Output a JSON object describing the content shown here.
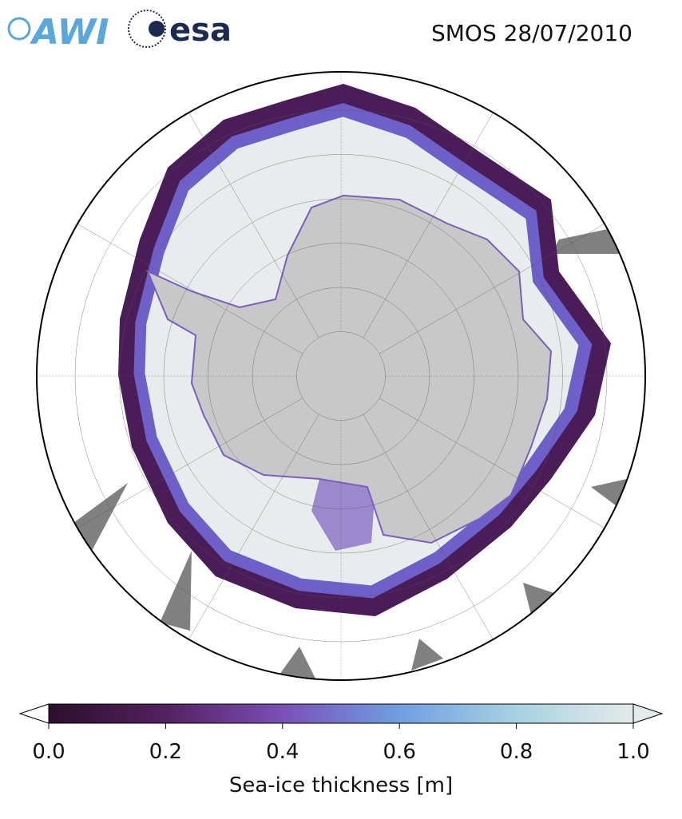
{
  "header": {
    "title": "SMOS 28/07/2010",
    "logos": [
      "AWI",
      "esa"
    ]
  },
  "colorbar": {
    "label": "Sea-ice thickness [m]",
    "lim": [
      0,
      1
    ],
    "ticks": [
      {
        "value": 0,
        "label": "0.0"
      },
      {
        "value": 0.2,
        "label": "0.2"
      },
      {
        "value": 0.4,
        "label": "0.4"
      },
      {
        "value": 0.6,
        "label": "0.6"
      },
      {
        "value": 0.8,
        "label": "0.8"
      },
      {
        "value": 1,
        "label": "1.0"
      }
    ],
    "colors": [
      "#2b0f2c",
      "#53215f",
      "#7a4fb8",
      "#6f9fe2",
      "#a7d2e0",
      "#e3ebea"
    ]
  }
}
